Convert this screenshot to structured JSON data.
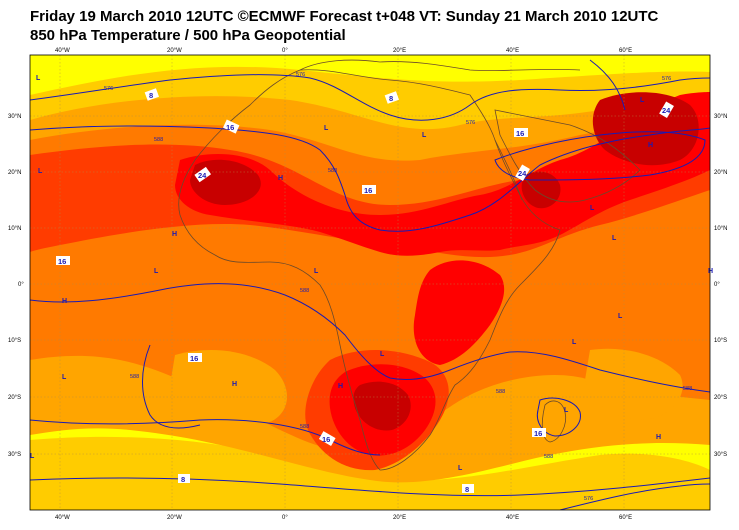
{
  "title_line1": "Friday 19 March 2010 12UTC ©ECMWF Forecast t+048 VT: Sunday 21 March 2010 12UTC",
  "title_line2": "850 hPa Temperature / 500 hPa Geopotential",
  "axes": {
    "lon_top": [
      "40°W",
      "20°W",
      "0°",
      "20°E",
      "40°E",
      "60°E"
    ],
    "lon_bottom": [
      "40°W",
      "20°W",
      "0°",
      "20°E",
      "40°E",
      "60°E"
    ],
    "lat_left": [
      "30°N",
      "20°N",
      "10°N",
      "0°",
      "10°S",
      "20°S",
      "30°S"
    ],
    "lat_right": [
      "30°N",
      "20°N",
      "10°N",
      "0°",
      "10°S",
      "20°S",
      "30°S"
    ]
  },
  "contour_labels_temperature": [
    "8",
    "8",
    "16",
    "24",
    "16",
    "16",
    "16",
    "24",
    "16",
    "24",
    "16",
    "16",
    "8",
    "8"
  ],
  "contour_labels_geopotential": [
    "576",
    "588",
    "576",
    "588",
    "588",
    "588",
    "588",
    "588",
    "576",
    "576",
    "588",
    "588",
    "576"
  ],
  "pressure_centers": [
    "L",
    "L",
    "L",
    "H",
    "H",
    "L",
    "L",
    "H",
    "L",
    "L",
    "L",
    "H",
    "H",
    "L",
    "L",
    "L",
    "H",
    "H",
    "L",
    "L",
    "L",
    "H",
    "L",
    "L"
  ],
  "colors": {
    "yellow_pale": "#ffff00",
    "yellow_deep": "#ffcc00",
    "orange_light": "#ffa500",
    "orange": "#ff7a00",
    "red_orange": "#ff3c00",
    "red": "#ff0000",
    "dark_red": "#c80000",
    "contour_blue": "#1a1ab4",
    "coast": "#6b4a2b"
  }
}
